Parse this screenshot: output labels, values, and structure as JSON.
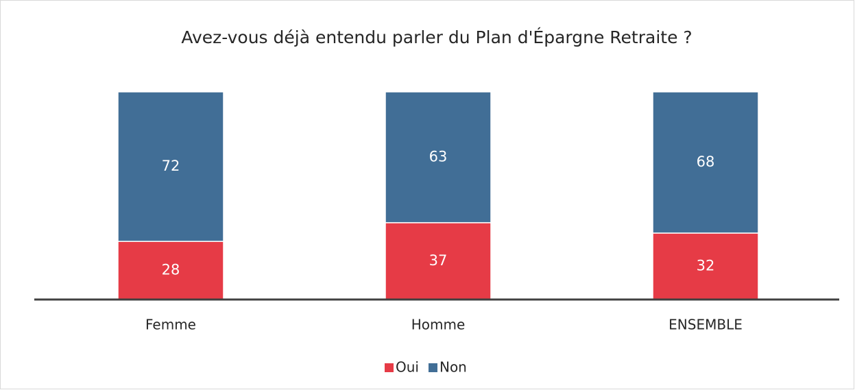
{
  "chart_data": {
    "type": "stacked_bar",
    "title": "Avez-vous déjà entendu parler du Plan d'Épargne Retraite ?",
    "categories": [
      "Femme",
      "Homme",
      "ENSEMBLE"
    ],
    "series": [
      {
        "name": "Oui",
        "color": "#e63b46",
        "values": [
          28,
          37,
          32
        ]
      },
      {
        "name": "Non",
        "color": "#416e96",
        "values": [
          72,
          63,
          68
        ]
      }
    ],
    "ylim": [
      0,
      100
    ]
  }
}
